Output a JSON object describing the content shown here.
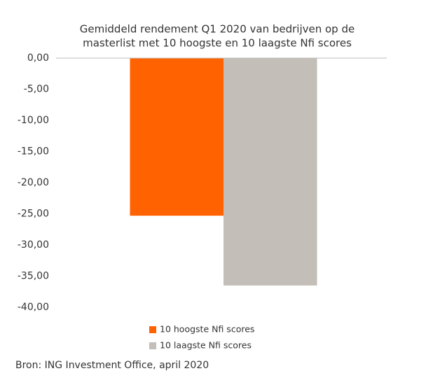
{
  "chart_data": {
    "type": "bar",
    "title": [
      "Gemiddeld  rendement Q1 2020 van bedrijven op de",
      "masterlist met 10 hoogste en 10 laagste Nfi scores"
    ],
    "categories": [
      null
    ],
    "series": [
      {
        "name": "10 hoogste Nfi scores",
        "color": "#ff6200",
        "values": [
          -25.3
        ]
      },
      {
        "name": "10 laagste Nfi scores",
        "color": "#c3beb7",
        "values": [
          -36.5
        ]
      }
    ],
    "ylim": [
      -40,
      0
    ],
    "yticks": [
      {
        "value": 0,
        "label": "0,00"
      },
      {
        "value": -5,
        "label": "-5,00"
      },
      {
        "value": -10,
        "label": "-10,00"
      },
      {
        "value": -15,
        "label": "-15,00"
      },
      {
        "value": -20,
        "label": "-20,00"
      },
      {
        "value": -25,
        "label": "-25,00"
      },
      {
        "value": -30,
        "label": "-30,00"
      },
      {
        "value": -35,
        "label": "-35,00"
      },
      {
        "value": -40,
        "label": "-40,00"
      }
    ],
    "legend": "bottom",
    "source": "Bron: ING Investment Office, april 2020"
  }
}
